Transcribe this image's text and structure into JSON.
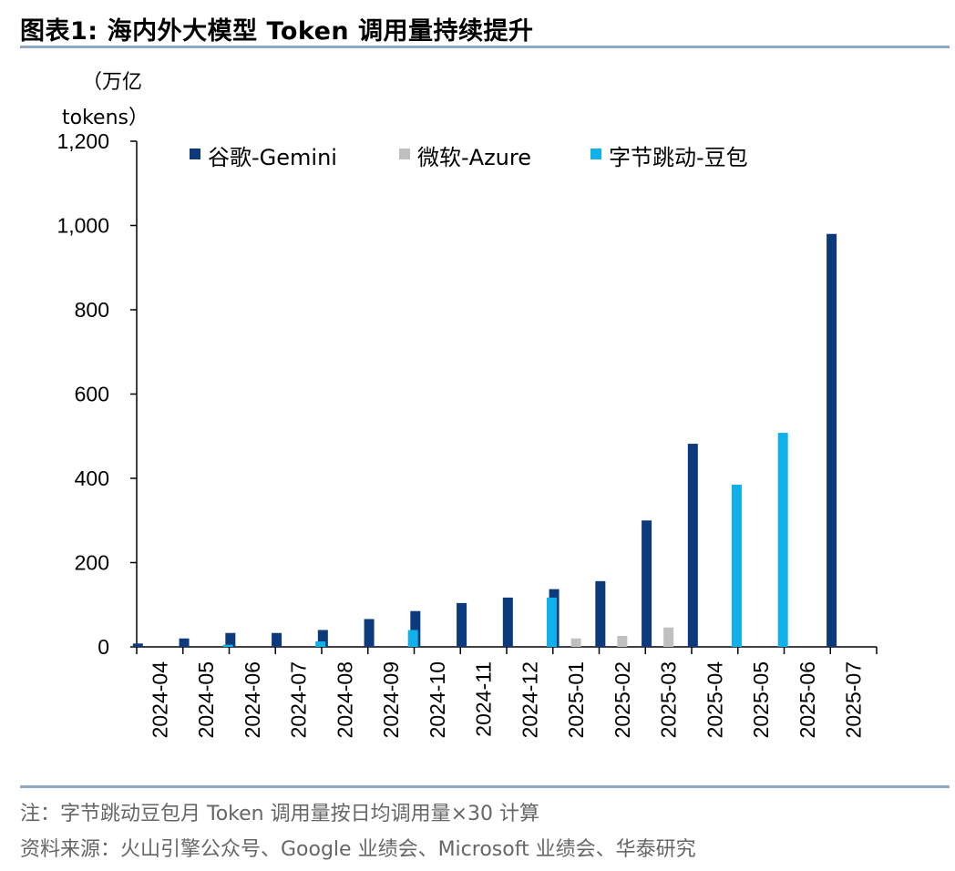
{
  "figure": {
    "label": "图表1:",
    "title": "海内外大模型 Token 调用量持续提升"
  },
  "colors": {
    "gemini": "#0c3a7d",
    "azure": "#c0c0c0",
    "doubao": "#10b0ea",
    "rule": "#8fa8c8"
  },
  "chart_data": {
    "type": "bar",
    "unit_line1": "（万亿",
    "unit_line2": "tokens）",
    "categories": [
      "2024-04",
      "2024-05",
      "2024-06",
      "2024-07",
      "2024-08",
      "2024-09",
      "2024-10",
      "2024-11",
      "2024-12",
      "2025-01",
      "2025-02",
      "2025-03",
      "2025-04",
      "2025-05",
      "2025-06",
      "2025-07"
    ],
    "series": [
      {
        "name": "谷歌-Gemini",
        "color_key": "gemini",
        "values": [
          8,
          20,
          33,
          33,
          40,
          66,
          85,
          104,
          117,
          137,
          156,
          300,
          482,
          null,
          null,
          980
        ]
      },
      {
        "name": "微软-Azure",
        "color_key": "azure",
        "values": [
          null,
          null,
          null,
          null,
          null,
          null,
          null,
          null,
          null,
          20,
          26,
          46,
          null,
          null,
          null,
          null
        ]
      },
      {
        "name": "字节跳动-豆包",
        "color_key": "doubao",
        "values": [
          null,
          5,
          null,
          13,
          null,
          40,
          null,
          null,
          117,
          null,
          null,
          null,
          385,
          508,
          null,
          null
        ]
      }
    ],
    "ylim": [
      0,
      1200
    ],
    "yticks": [
      0,
      200,
      400,
      600,
      800,
      1000,
      1200
    ],
    "ytick_labels": [
      "0",
      "200",
      "400",
      "600",
      "800",
      "1,000",
      "1,200"
    ],
    "legend_position": "top"
  },
  "notes": {
    "note": "注：字节跳动豆包月 Token 调用量按日均调用量×30 计算",
    "source": "资料来源：火山引擎公众号、Google 业绩会、Microsoft 业绩会、华泰研究"
  }
}
